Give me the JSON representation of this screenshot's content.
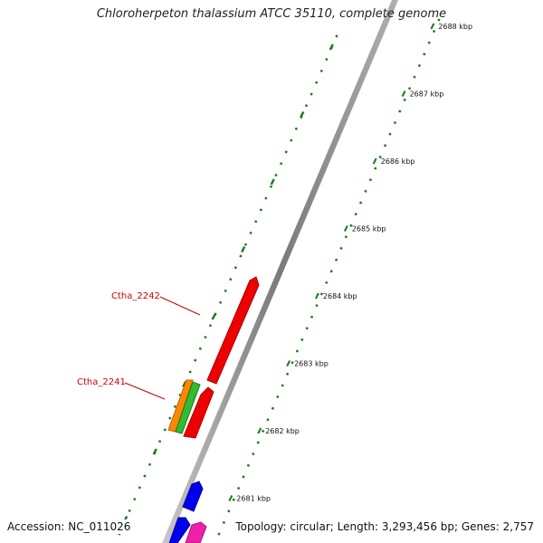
{
  "title": "Chloroherpeton thalassium ATCC 35110, complete genome",
  "footer": {
    "accession": "Accession: NC_011026",
    "summary": "Topology: circular; Length: 3,293,456 bp; Genes: 2,757"
  },
  "colors": {
    "backbone": "#8a8a8a",
    "ticks": "#1a7a1a",
    "gene_label": "#cc0000",
    "label_line": "#cc0000"
  },
  "scale": {
    "unit": "kbp",
    "labels": [
      "2688 kbp",
      "2687 kbp",
      "2686 kbp",
      "2685 kbp",
      "2684 kbp",
      "2683 kbp",
      "2682 kbp",
      "2681 kbp"
    ]
  },
  "gene_labels": [
    "Ctha_2242",
    "Ctha_2241"
  ],
  "features": [
    {
      "name": "Ctha_2242",
      "color": "#ee0000",
      "strand": "+"
    },
    {
      "name": "Ctha_2241",
      "color": "#ee0000",
      "strand": "+"
    },
    {
      "name": "orange feature",
      "color": "#ff8800",
      "strand": "-"
    },
    {
      "name": "green feature",
      "color": "#33bb33",
      "strand": "-"
    },
    {
      "name": "blue feature 1",
      "color": "#0000ee",
      "strand": "+"
    },
    {
      "name": "blue feature 2",
      "color": "#0000ee",
      "strand": "-"
    },
    {
      "name": "pink feature",
      "color": "#ee22aa",
      "strand": "+"
    }
  ]
}
